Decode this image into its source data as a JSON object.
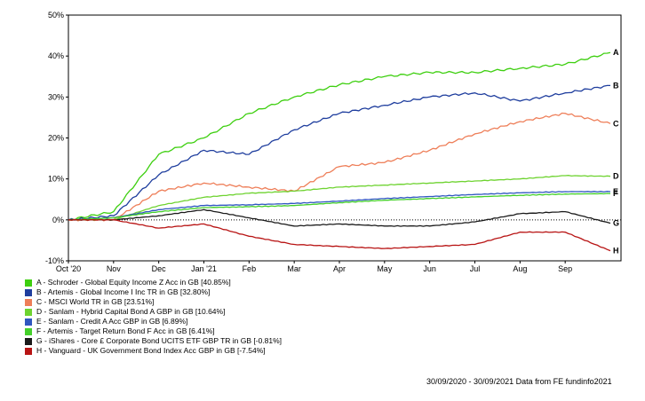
{
  "chart_data": {
    "type": "line",
    "title": "",
    "xlabel": "",
    "ylabel": "",
    "x_ticks": [
      "Oct '20",
      "Nov",
      "Dec",
      "Jan '21",
      "Feb",
      "Mar",
      "Apr",
      "May",
      "Jun",
      "Jul",
      "Aug",
      "Sep"
    ],
    "y_ticks": [
      "-10%",
      "0%",
      "10%",
      "20%",
      "30%",
      "40%",
      "50%"
    ],
    "ylim": [
      -10,
      50
    ],
    "y_unit": "%",
    "zero_reference_line": true,
    "grid": false,
    "legend_position": "bottom-left",
    "x": [
      "Oct '20",
      "Nov",
      "Dec",
      "Jan '21",
      "Feb",
      "Mar",
      "Apr",
      "May",
      "Jun",
      "Jul",
      "Aug",
      "Sep",
      "30/09/2021"
    ],
    "series": [
      {
        "letter": "A",
        "name": "A - Schroder - Global Equity Income Z Acc in GB [40.85%]",
        "color": "#3ecf10",
        "values": [
          0,
          2,
          16,
          20,
          26,
          30,
          33,
          35,
          36,
          36,
          37,
          38,
          40.85
        ]
      },
      {
        "letter": "B",
        "name": "B - Artemis - Global Income I Inc TR in GB [32.80%]",
        "color": "#1f3e9e",
        "values": [
          0,
          1,
          11,
          17,
          16,
          22,
          26,
          28,
          30,
          31,
          29,
          31,
          32.8
        ]
      },
      {
        "letter": "C",
        "name": "C - MSCI World TR in GB [23.51%]",
        "color": "#ee7e58",
        "values": [
          0,
          0,
          7,
          9,
          8,
          7,
          13,
          14,
          17,
          21,
          24,
          26,
          23.51
        ]
      },
      {
        "letter": "D",
        "name": "D - Sanlam - Hybrid Capital Bond A GBP in GB [10.64%]",
        "color": "#6ed330",
        "values": [
          0,
          0,
          3.5,
          5.5,
          6.5,
          7,
          8,
          8.5,
          9,
          9.5,
          10,
          10.8,
          10.64
        ]
      },
      {
        "letter": "E",
        "name": "E - Sanlam - Credit A Acc GBP in GB [6.89%]",
        "color": "#2f56c0",
        "values": [
          0,
          0.5,
          2.5,
          3.5,
          3.7,
          4,
          4.6,
          5.2,
          5.7,
          6.2,
          6.6,
          6.9,
          6.89
        ]
      },
      {
        "letter": "F",
        "name": "F - Artemis - Target Return Bond F Acc in GB [6.41%]",
        "color": "#44d02a",
        "values": [
          0,
          0.5,
          2,
          3,
          3.2,
          3.5,
          4.2,
          4.8,
          5.2,
          5.6,
          6,
          6.3,
          6.41
        ]
      },
      {
        "letter": "G",
        "name": "G - iShares - Core £ Corporate Bond UCITS ETF GBP TR in GB [-0.81%]",
        "color": "#1a1a1a",
        "values": [
          0,
          0,
          1,
          2.5,
          0.5,
          -1.5,
          -1,
          -1.5,
          -1.5,
          -0.5,
          1.5,
          2,
          -0.81
        ]
      },
      {
        "letter": "H",
        "name": "H - Vanguard - UK Government Bond Index Acc GBP in GB [-7.54%]",
        "color": "#b81414",
        "values": [
          0,
          0,
          -2,
          -1,
          -4,
          -6,
          -6.5,
          -7,
          -6.5,
          -6,
          -3,
          -3,
          -7.54
        ]
      }
    ]
  },
  "footer": {
    "date_range": "30/09/2020 - 30/09/2021",
    "source": "Data from FE fundinfo2021"
  }
}
